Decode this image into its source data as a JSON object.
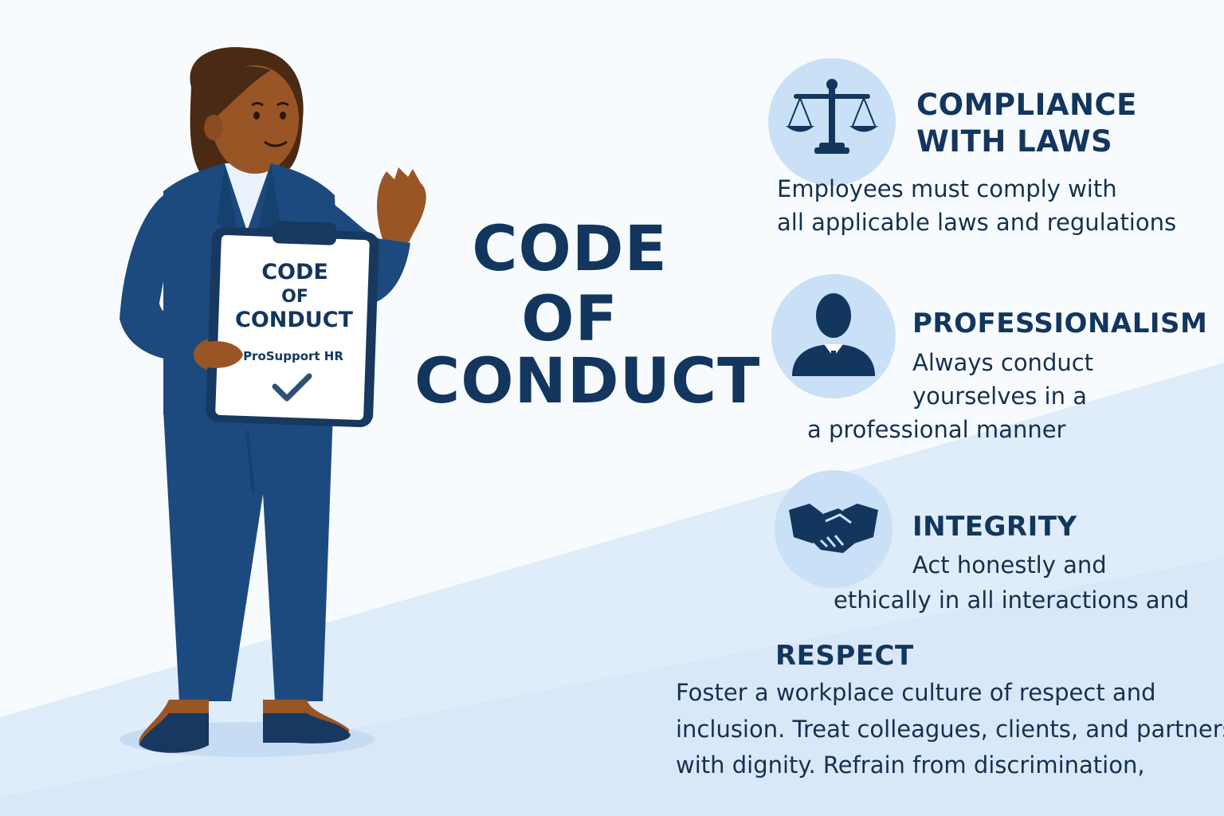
{
  "main_title": [
    "CODE",
    "OF",
    "CONDUCT"
  ],
  "clipboard": {
    "title_lines": [
      "CODE",
      "OF",
      "CONDUCT"
    ],
    "company": "ProSupport HR"
  },
  "sections": {
    "compliance": {
      "icon": "scales-icon",
      "heading_lines": [
        "COMPLIANCE",
        "WITH LAWS"
      ],
      "body_lines": [
        "Employees must comply with",
        "all applicable laws and regulations"
      ]
    },
    "professionalism": {
      "icon": "person-icon",
      "heading": "PROFESSIONALISM",
      "body_lines": [
        "Always conduct",
        "yourselves in a",
        "a professional manner"
      ]
    },
    "integrity": {
      "icon": "handshake-icon",
      "heading": "INTEGRITY",
      "body_lines": [
        "Act honestly and",
        "ethically in all interactions and"
      ]
    },
    "respect": {
      "heading": "RESPECT",
      "body_lines": [
        "Foster a workplace culture of respect and",
        "inclusion. Treat colleagues, clients, and partners",
        "with dignity. Refrain from discrimination,"
      ]
    }
  },
  "colors": {
    "navy": "#12365e",
    "suit": "#1c4a7f",
    "circle": "#c9e0f6",
    "background_light": "#f7fafd",
    "background_band": "#dbe9f8"
  }
}
